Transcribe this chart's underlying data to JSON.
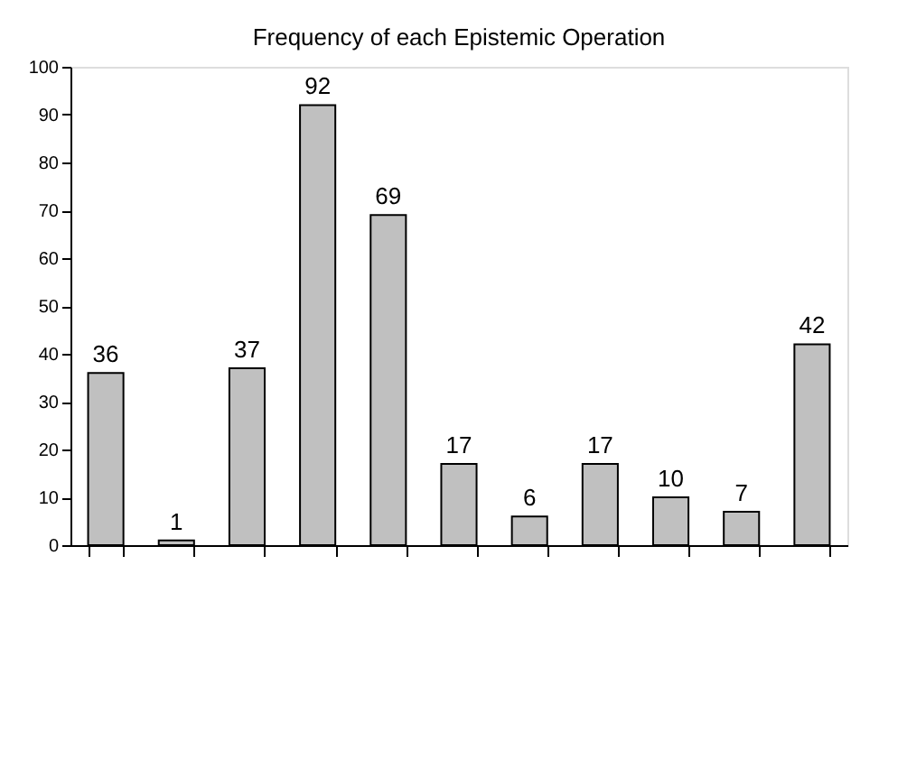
{
  "chart_data": {
    "type": "bar",
    "title": "Frequency of each Epistemic Operation",
    "categories": [
      null,
      null,
      null,
      null,
      null,
      null,
      null,
      null,
      null,
      null,
      null
    ],
    "values": [
      36,
      1,
      37,
      92,
      69,
      17,
      6,
      17,
      10,
      7,
      42
    ],
    "color": "#c0c0c0",
    "ylim": [
      0,
      100
    ],
    "yticks": [
      0,
      10,
      20,
      30,
      40,
      50,
      60,
      70,
      80,
      90,
      100
    ],
    "data_labels": true,
    "grid": false,
    "tick_labels": "y"
  }
}
